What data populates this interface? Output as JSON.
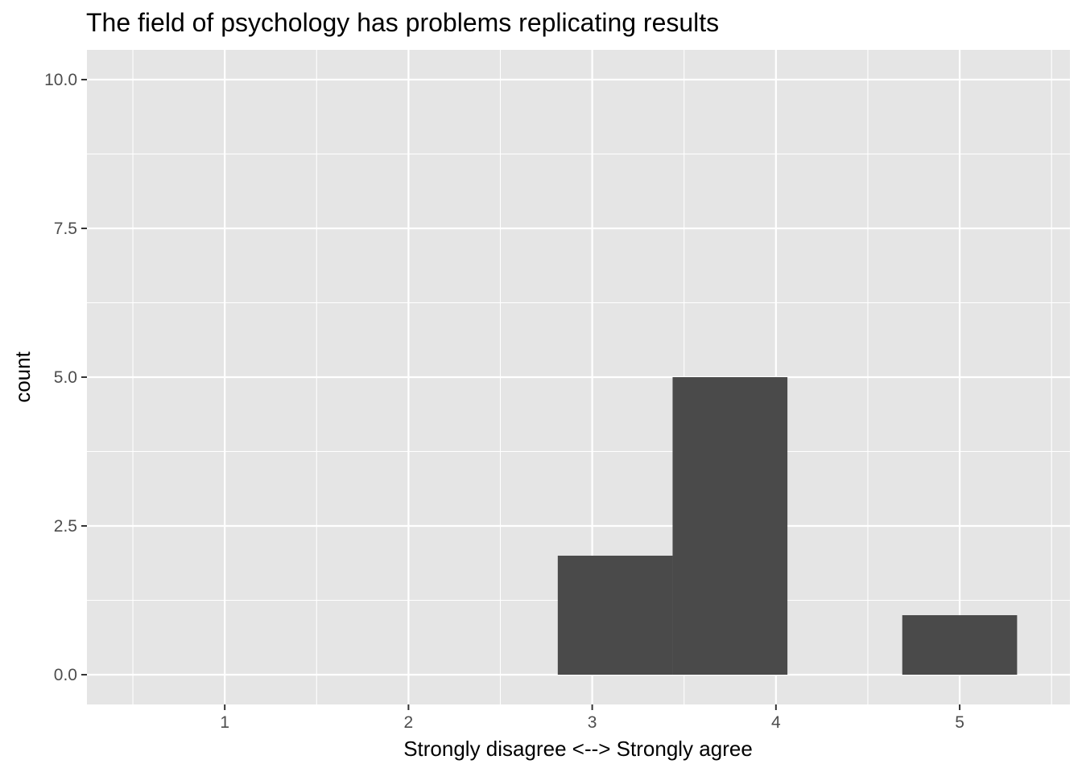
{
  "chart_data": {
    "type": "bar",
    "title": "The field of psychology has problems replicating results",
    "xlabel": "Strongly disagree <--> Strongly agree",
    "ylabel": "count",
    "x_ticks": [
      "1",
      "2",
      "3",
      "4",
      "5"
    ],
    "y_ticks": [
      "0.0",
      "2.5",
      "5.0",
      "7.5",
      "10.0"
    ],
    "xlim": [
      0.25,
      5.6
    ],
    "ylim": [
      -0.5,
      10.5
    ],
    "bins": [
      {
        "start": 2.8125,
        "end": 3.4375,
        "count": 2
      },
      {
        "start": 3.4375,
        "end": 4.0625,
        "count": 5
      },
      {
        "start": 4.6875,
        "end": 5.3125,
        "count": 1
      }
    ],
    "colors": {
      "panel": "#e5e5e5",
      "grid": "#ffffff",
      "bar": "#4a4a4a",
      "tick_text": "#4d4d4d",
      "tick_mark": "#333333"
    }
  }
}
